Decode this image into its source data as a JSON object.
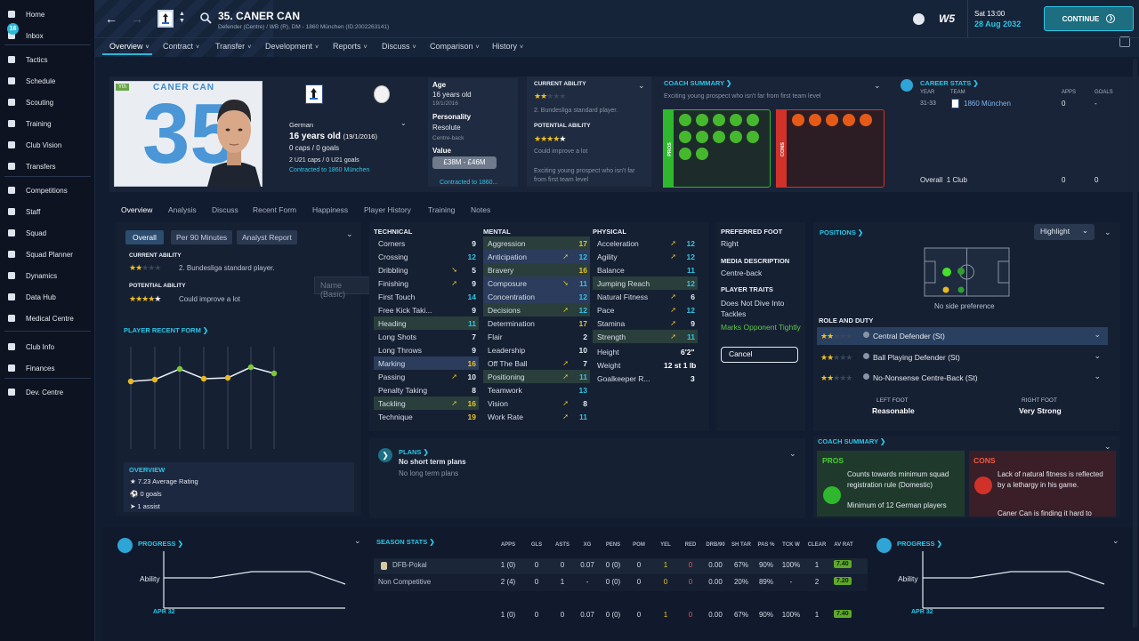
{
  "sidebar": {
    "items": [
      {
        "label": "Home",
        "icon": "home-icon"
      },
      {
        "label": "Inbox",
        "icon": "inbox-icon"
      },
      {
        "label": "Tactics",
        "icon": "tactics-icon"
      },
      {
        "label": "Schedule",
        "icon": "schedule-icon"
      },
      {
        "label": "Scouting",
        "icon": "scouting-icon"
      },
      {
        "label": "Training",
        "icon": "training-icon"
      },
      {
        "label": "Club Vision",
        "icon": "club-vision-icon"
      },
      {
        "label": "Transfers",
        "icon": "transfers-icon"
      },
      {
        "label": "Competitions",
        "icon": "trophy-icon"
      },
      {
        "label": "Staff",
        "icon": "staff-icon"
      },
      {
        "label": "Squad",
        "icon": "squad-icon"
      },
      {
        "label": "Squad Planner",
        "icon": "squad-planner-icon"
      },
      {
        "label": "Dynamics",
        "icon": "dynamics-icon"
      },
      {
        "label": "Data Hub",
        "icon": "data-hub-icon"
      },
      {
        "label": "Medical Centre",
        "icon": "medical-icon"
      },
      {
        "label": "Club Info",
        "icon": "club-info-icon"
      },
      {
        "label": "Finances",
        "icon": "finances-icon"
      },
      {
        "label": "Dev. Centre",
        "icon": "dev-centre-icon"
      }
    ],
    "inbox_badge": "16"
  },
  "header": {
    "player_title": "35. CANER CAN",
    "player_subtitle": "Defender (Centre) / WB (R), DM - 1860 München (ID:2002263141)",
    "date_day": "Sat 13:00",
    "date_full": "28 Aug 2032",
    "continue_label": "CONTINUE",
    "menus": [
      "Overview",
      "Contract",
      "Transfer",
      "Development",
      "Reports",
      "Discuss",
      "Comparison",
      "History"
    ]
  },
  "profile": {
    "name_on_card": "CANER CAN",
    "shirt_number": "35",
    "yth_tag": "Yth",
    "nationality": "German",
    "age_line": "16 years old",
    "dob": "(19/1/2016)",
    "caps": "0 caps / 0 goals",
    "u21": "2 U21 caps / 0 U21 goals",
    "contract": "Contracted to 1860 München"
  },
  "info": {
    "age_label": "Age",
    "age_value": "16 years old",
    "dob": "19/1/2016",
    "personality_label": "Personality",
    "personality_value": "Resolute",
    "media_desc": "Centre-back",
    "value_label": "Value",
    "value_range": "£38M - £46M",
    "contract_short": "Contracted to 1860..."
  },
  "ability": {
    "current_label": "CURRENT ABILITY",
    "current_text": "2. Bundesliga standard player.",
    "potential_label": "POTENTIAL ABILITY",
    "potential_text": "Could improve a lot",
    "summary_text": "Exciting young prospect who isn't far from first team level"
  },
  "coach_summary": {
    "title": "COACH SUMMARY",
    "text": "Exciting young prospect who isn't far from first team level",
    "pros_label": "PROS",
    "cons_label": "CONS"
  },
  "career": {
    "title": "CAREER STATS",
    "headers": [
      "YEAR",
      "TEAM",
      "APPS",
      "GOALS"
    ],
    "row": {
      "year": "31-33",
      "team": "1860 München",
      "apps": "0",
      "goals": "-"
    },
    "overall_label": "Overall",
    "overall_clubs": "1 Club",
    "overall_apps": "0",
    "overall_goals": "0"
  },
  "subtabs": [
    "Overview",
    "Analysis",
    "Discuss",
    "Recent Form",
    "Happiness",
    "Player History",
    "Training",
    "Notes"
  ],
  "left_panel": {
    "tabs": [
      "Overall",
      "Per 90 Minutes",
      "Analyst Report"
    ],
    "current_label": "CURRENT ABILITY",
    "current_text": "2. Bundesliga standard player.",
    "potential_label": "POTENTIAL ABILITY",
    "potential_text": "Could improve a lot",
    "recent_form_title": "PLAYER RECENT FORM",
    "name_basic_placeholder": "Name (Basic)",
    "overview_title": "OVERVIEW",
    "overview_items": [
      "7.23 Average Rating",
      "0 goals",
      "1 assist"
    ]
  },
  "attributes": {
    "technical_title": "TECHNICAL",
    "mental_title": "MENTAL",
    "physical_title": "PHYSICAL",
    "technical": [
      {
        "n": "Corners",
        "v": "9",
        "c": "#e6ecf4"
      },
      {
        "n": "Crossing",
        "v": "12",
        "c": "#2fc6e6"
      },
      {
        "n": "Dribbling",
        "v": "5",
        "c": "#e6ecf4",
        "arrow": "down"
      },
      {
        "n": "Finishing",
        "v": "9",
        "c": "#e6ecf4",
        "arrow": "up"
      },
      {
        "n": "First Touch",
        "v": "14",
        "c": "#2fc6e6"
      },
      {
        "n": "Free Kick Taki...",
        "v": "9",
        "c": "#e6ecf4"
      },
      {
        "n": "Heading",
        "v": "11",
        "c": "#2fc6e6",
        "hl": "g"
      },
      {
        "n": "Long Shots",
        "v": "7",
        "c": "#e6ecf4"
      },
      {
        "n": "Long Throws",
        "v": "9",
        "c": "#e6ecf4"
      },
      {
        "n": "Marking",
        "v": "16",
        "c": "#e8c420",
        "hl": "b"
      },
      {
        "n": "Passing",
        "v": "10",
        "c": "#e6ecf4",
        "arrow": "up"
      },
      {
        "n": "Penalty Taking",
        "v": "8",
        "c": "#e6ecf4"
      },
      {
        "n": "Tackling",
        "v": "16",
        "c": "#e8c420",
        "hl": "g",
        "arrow": "up"
      },
      {
        "n": "Technique",
        "v": "19",
        "c": "#e8c420"
      }
    ],
    "mental": [
      {
        "n": "Aggression",
        "v": "17",
        "c": "#e8c420",
        "hl": "g"
      },
      {
        "n": "Anticipation",
        "v": "12",
        "c": "#2fc6e6",
        "hl": "b",
        "arrow": "up"
      },
      {
        "n": "Bravery",
        "v": "16",
        "c": "#e8c420",
        "hl": "g"
      },
      {
        "n": "Composure",
        "v": "11",
        "c": "#2fc6e6",
        "hl": "b",
        "arrow": "down"
      },
      {
        "n": "Concentration",
        "v": "12",
        "c": "#2fc6e6",
        "hl": "b"
      },
      {
        "n": "Decisions",
        "v": "12",
        "c": "#2fc6e6",
        "hl": "g",
        "arrow": "up"
      },
      {
        "n": "Determination",
        "v": "17",
        "c": "#e8c420"
      },
      {
        "n": "Flair",
        "v": "2",
        "c": "#e6ecf4"
      },
      {
        "n": "Leadership",
        "v": "10",
        "c": "#e6ecf4"
      },
      {
        "n": "Off The Ball",
        "v": "7",
        "c": "#e6ecf4",
        "arrow": "up"
      },
      {
        "n": "Positioning",
        "v": "11",
        "c": "#2fc6e6",
        "hl": "g",
        "arrow": "up"
      },
      {
        "n": "Teamwork",
        "v": "13",
        "c": "#2fc6e6"
      },
      {
        "n": "Vision",
        "v": "8",
        "c": "#e6ecf4",
        "arrow": "up"
      },
      {
        "n": "Work Rate",
        "v": "11",
        "c": "#2fc6e6",
        "arrow": "up"
      }
    ],
    "physical": [
      {
        "n": "Acceleration",
        "v": "12",
        "c": "#2fc6e6",
        "arrow": "up"
      },
      {
        "n": "Agility",
        "v": "12",
        "c": "#2fc6e6",
        "arrow": "up"
      },
      {
        "n": "Balance",
        "v": "11",
        "c": "#2fc6e6"
      },
      {
        "n": "Jumping Reach",
        "v": "12",
        "c": "#2fc6e6",
        "hl": "g"
      },
      {
        "n": "Natural Fitness",
        "v": "6",
        "c": "#e6ecf4",
        "arrow": "up"
      },
      {
        "n": "Pace",
        "v": "12",
        "c": "#2fc6e6",
        "arrow": "up"
      },
      {
        "n": "Stamina",
        "v": "9",
        "c": "#e6ecf4",
        "arrow": "up"
      },
      {
        "n": "Strength",
        "v": "11",
        "c": "#2fc6e6",
        "hl": "g",
        "arrow": "up"
      }
    ],
    "height_label": "Height",
    "height_value": "6'2\"",
    "weight_label": "Weight",
    "weight_value": "12 st 1 lb",
    "gk_label": "Goalkeeper R...",
    "gk_value": "3"
  },
  "traits": {
    "foot_label": "PREFERRED FOOT",
    "foot_value": "Right",
    "media_label": "MEDIA DESCRIPTION",
    "media_value": "Centre-back",
    "traits_label": "PLAYER TRAITS",
    "trait1": "Does Not Dive Into Tackles",
    "trait2": "Marks Opponent Tightly",
    "cancel": "Cancel"
  },
  "positions": {
    "title": "POSITIONS",
    "highlight": "Highlight",
    "pref": "No side preference",
    "role_title": "ROLE AND DUTY",
    "roles": [
      "Central Defender (St)",
      "Ball Playing Defender (St)",
      "No-Nonsense Centre-Back (St)"
    ],
    "left_foot_label": "LEFT FOOT",
    "left_foot_value": "Reasonable",
    "right_foot_label": "RIGHT FOOT",
    "right_foot_value": "Very Strong"
  },
  "coach_summary2": {
    "title": "COACH SUMMARY",
    "pros_label": "PROS",
    "cons_label": "CONS",
    "pro_text": "Counts towards minimum squad registration rule (Domestic)",
    "pro_text2": "Minimum of 12 German players",
    "con_text": "Lack of natural fitness is reflected by a lethargy in his game.",
    "con_text2": "Caner Can is finding it hard to"
  },
  "plans": {
    "title": "PLANS",
    "line1": "No short term plans",
    "line2": "No long term plans"
  },
  "season_stats": {
    "title": "SEASON STATS",
    "headers": [
      "APPS",
      "GLS",
      "ASTS",
      "XG",
      "PENS",
      "POM",
      "YEL",
      "RED",
      "DRB/90",
      "SH TAR",
      "PAS %",
      "TCK W",
      "CLEAR",
      "AV RAT"
    ],
    "rows": [
      {
        "comp": "DFB-Pokal",
        "vals": [
          "1 (0)",
          "0",
          "0",
          "0.07",
          "0 (0)",
          "0",
          "1",
          "0",
          "0.00",
          "67%",
          "90%",
          "100%",
          "1",
          "7.40"
        ]
      },
      {
        "comp": "Non Competitive",
        "vals": [
          "2 (4)",
          "0",
          "1",
          "-",
          "0 (0)",
          "0",
          "0",
          "0",
          "0.00",
          "20%",
          "89%",
          "-",
          "2",
          "7.20"
        ]
      },
      {
        "comp": "",
        "vals": [
          "1 (0)",
          "0",
          "0",
          "0.07",
          "0 (0)",
          "0",
          "1",
          "0",
          "0.00",
          "67%",
          "90%",
          "100%",
          "1",
          "7.40"
        ]
      }
    ]
  },
  "progress": {
    "title": "PROGRESS",
    "ability_label": "Ability",
    "month_label": "APR 32"
  },
  "colors": {
    "accent": "#2fc6e6",
    "pros": "#2fb82e",
    "cons": "#d0322a"
  }
}
